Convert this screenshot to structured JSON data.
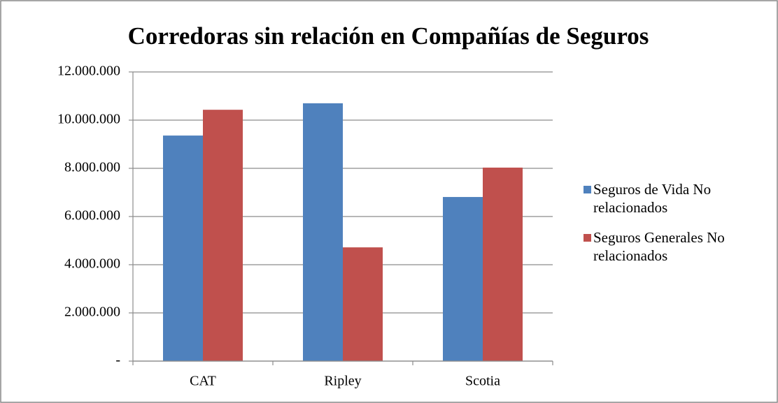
{
  "chart_data": {
    "type": "bar",
    "title": "Corredoras sin relación en Compañías de Seguros",
    "categories": [
      "CAT",
      "Ripley",
      "Scotia"
    ],
    "series": [
      {
        "name": "Seguros de Vida No relacionados",
        "color": "#4f81bd",
        "values": [
          9360000,
          10700000,
          6810000
        ]
      },
      {
        "name": "Seguros Generales No relacionados",
        "color": "#c0504d",
        "values": [
          10430000,
          4720000,
          8030000
        ]
      }
    ],
    "ylim": [
      0,
      12000000
    ],
    "yticks": [
      {
        "value": 0,
        "label": "-"
      },
      {
        "value": 2000000,
        "label": "2.000.000"
      },
      {
        "value": 4000000,
        "label": "4.000.000"
      },
      {
        "value": 6000000,
        "label": "6.000.000"
      },
      {
        "value": 8000000,
        "label": "8.000.000"
      },
      {
        "value": 10000000,
        "label": "10.000.000"
      },
      {
        "value": 12000000,
        "label": "12.000.000"
      }
    ],
    "grid": true,
    "legend": "right"
  }
}
